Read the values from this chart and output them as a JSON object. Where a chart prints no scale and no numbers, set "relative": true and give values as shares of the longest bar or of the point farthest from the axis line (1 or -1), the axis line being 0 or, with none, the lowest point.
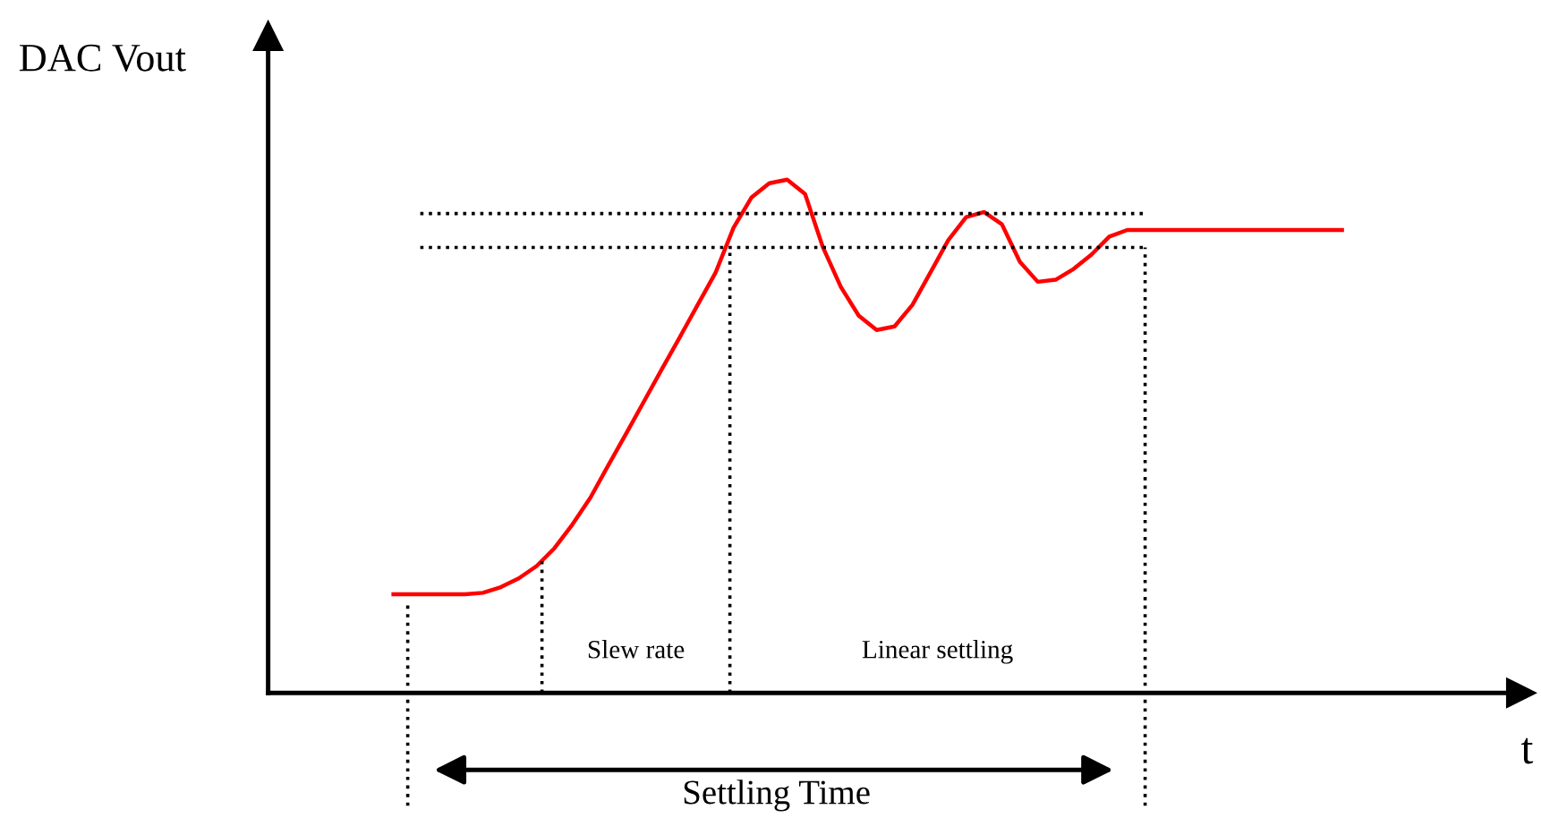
{
  "chart_data": {
    "type": "line",
    "relative": true,
    "xlabel": "t",
    "categories": [
      null,
      null,
      null,
      null,
      null,
      null,
      null,
      null,
      null,
      null,
      null,
      null,
      null,
      null,
      null,
      null,
      null,
      null,
      null,
      null,
      null,
      null,
      null,
      null,
      null,
      null,
      null,
      null,
      null,
      null,
      null,
      null,
      null,
      null,
      null,
      null,
      null,
      null,
      null,
      null,
      null,
      null,
      null,
      null,
      null,
      null,
      null,
      null,
      null,
      null,
      null,
      null,
      null,
      null
    ],
    "series": [
      {
        "color": "#ff0000",
        "values": [
          0.192,
          0.192,
          0.192,
          0.192,
          0.192,
          0.195,
          0.206,
          0.223,
          0.247,
          0.282,
          0.328,
          0.38,
          0.443,
          0.505,
          0.568,
          0.631,
          0.693,
          0.756,
          0.819,
          0.906,
          0.965,
          0.993,
          1,
          0.972,
          0.868,
          0.791,
          0.735,
          0.707,
          0.714,
          0.756,
          0.819,
          0.882,
          0.927,
          0.937,
          0.913,
          0.84,
          0.801,
          0.805,
          0.826,
          0.854,
          0.889,
          0.902,
          0.902,
          0.902,
          0.902,
          0.902,
          0.902,
          0.902,
          0.902,
          0.902,
          0.902,
          0.902,
          0.902,
          0.902
        ]
      }
    ],
    "ref_lines": [
      {
        "axis": "y",
        "value": 0.934,
        "line_style": "dotted",
        "color": "#000000"
      },
      {
        "axis": "y",
        "value": 0.868,
        "line_style": "dotted",
        "color": "#000000"
      }
    ],
    "annotations": [
      "DAC Vout",
      "Slew rate",
      "Linear settling",
      "Settling Time"
    ],
    "grid": false,
    "legend": false,
    "line_style": "solid"
  }
}
